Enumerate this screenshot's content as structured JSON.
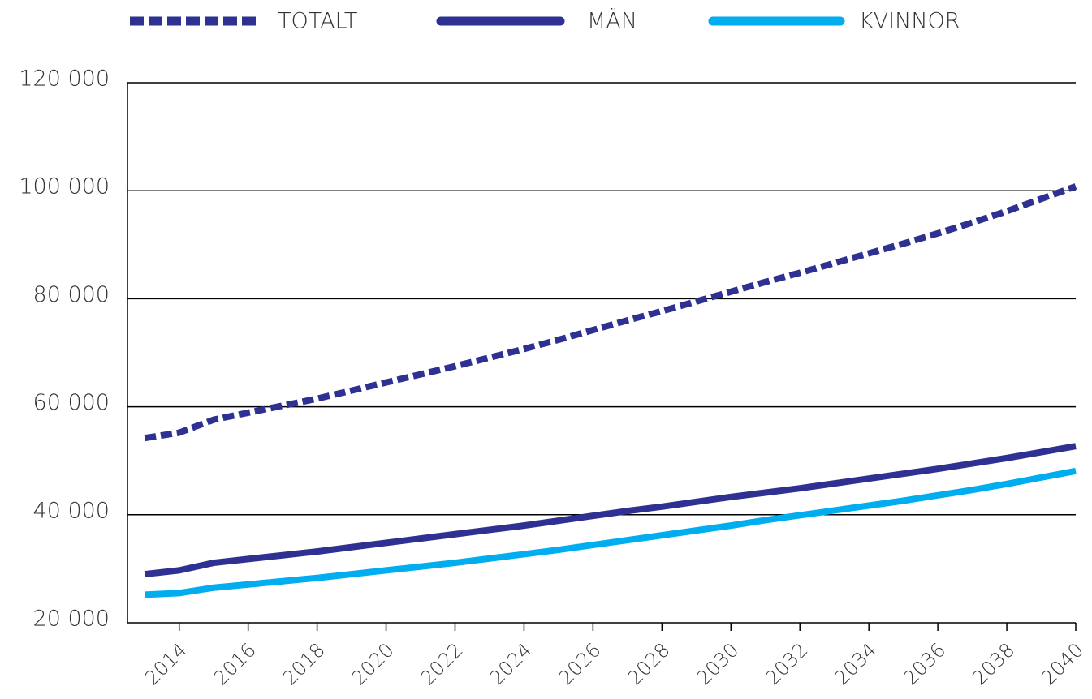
{
  "chart_data": {
    "type": "line",
    "x": [
      2013,
      2014,
      2015,
      2016,
      2017,
      2018,
      2019,
      2020,
      2021,
      2022,
      2023,
      2024,
      2025,
      2026,
      2027,
      2028,
      2029,
      2030,
      2031,
      2032,
      2033,
      2034,
      2035,
      2036,
      2037,
      2038,
      2039,
      2040
    ],
    "series": [
      {
        "name": "TOTALT",
        "color": "#2e3192",
        "dashed": true,
        "values": [
          54200,
          55200,
          57600,
          58900,
          60200,
          61500,
          63000,
          64500,
          66000,
          67500,
          69100,
          70700,
          72400,
          74200,
          76000,
          77700,
          79500,
          81300,
          83100,
          84800,
          86600,
          88400,
          90200,
          92100,
          94100,
          96200,
          98500,
          100800
        ]
      },
      {
        "name": "MÄN",
        "color": "#2e3192",
        "dashed": false,
        "values": [
          29000,
          29700,
          31100,
          31800,
          32500,
          33200,
          34000,
          34800,
          35600,
          36400,
          37200,
          38000,
          38900,
          39800,
          40700,
          41500,
          42400,
          43300,
          44100,
          44900,
          45800,
          46700,
          47600,
          48500,
          49500,
          50500,
          51600,
          52700
        ]
      },
      {
        "name": "KVINNOR",
        "color": "#00aeef",
        "dashed": false,
        "values": [
          25200,
          25500,
          26500,
          27100,
          27700,
          28300,
          29000,
          29700,
          30400,
          31100,
          31900,
          32700,
          33500,
          34400,
          35300,
          36200,
          37100,
          38000,
          39000,
          39900,
          40800,
          41700,
          42600,
          43600,
          44600,
          45700,
          46900,
          48100
        ]
      }
    ],
    "xlim": [
      2012.5,
      2040
    ],
    "xticks": [
      2014,
      2016,
      2018,
      2020,
      2022,
      2024,
      2026,
      2028,
      2030,
      2032,
      2034,
      2036,
      2038,
      2040
    ],
    "ylim": [
      20000,
      120000
    ],
    "yticks": [
      {
        "value": 20000,
        "label": "20 000"
      },
      {
        "value": 40000,
        "label": "40 000"
      },
      {
        "value": 60000,
        "label": "60 000"
      },
      {
        "value": 80000,
        "label": "80 000"
      },
      {
        "value": 100000,
        "label": "100 000"
      },
      {
        "value": 120000,
        "label": "120 000"
      }
    ],
    "grid": true,
    "legend": "top"
  }
}
